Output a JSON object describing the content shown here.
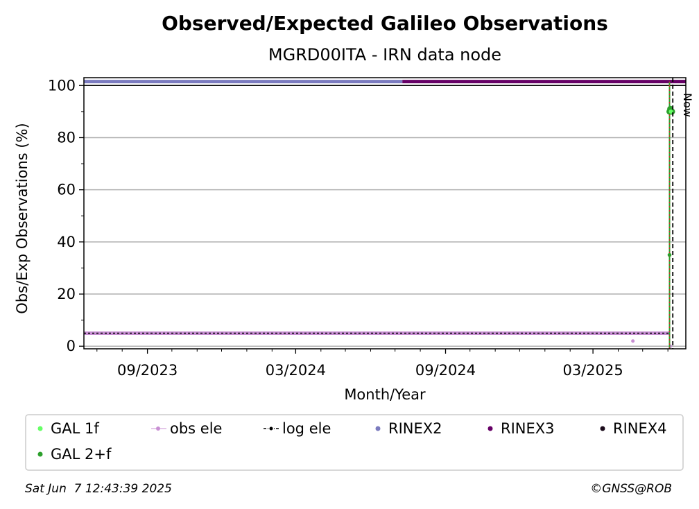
{
  "chart_data": {
    "type": "scatter",
    "title": "Observed/Expected Galileo Observations",
    "subtitle": "MGRD00ITA - IRN data node",
    "xlabel": "Month/Year",
    "ylabel": "Obs/Exp Observations (%)",
    "xlim": [
      "2023-06-15",
      "2025-06-23"
    ],
    "ylim": [
      -1,
      103
    ],
    "x_ticks": [
      {
        "date": "2023-09-01",
        "label": "09/2023"
      },
      {
        "date": "2024-03-01",
        "label": "03/2024"
      },
      {
        "date": "2024-09-01",
        "label": "09/2024"
      },
      {
        "date": "2025-03-01",
        "label": "03/2025"
      }
    ],
    "x_minor_ticks": [
      "2023-07-01",
      "2023-08-01",
      "2023-10-01",
      "2023-11-01",
      "2023-12-01",
      "2024-01-01",
      "2024-02-01",
      "2024-04-01",
      "2024-05-01",
      "2024-06-01",
      "2024-07-01",
      "2024-08-01",
      "2024-10-01",
      "2024-11-01",
      "2024-12-01",
      "2025-01-01",
      "2025-02-01",
      "2025-04-01",
      "2025-05-01",
      "2025-06-01"
    ],
    "y_ticks": [
      0,
      20,
      40,
      60,
      80,
      100
    ],
    "y_minor_ticks": [
      10,
      30,
      50,
      70,
      90
    ],
    "grid": "horizontal",
    "now_date": "2025-06-07",
    "now_label": "Now",
    "series": [
      {
        "name": "GAL 1f",
        "color": "#66ff66",
        "marker": "dot",
        "points": [
          {
            "x": "2025-06-03",
            "y": 90
          }
        ]
      },
      {
        "name": "obs ele",
        "color": "#c88fd3",
        "marker": "dot-line",
        "segment": {
          "start": "2023-06-15",
          "end": "2025-06-03",
          "y": 5
        },
        "points": [
          {
            "x": "2025-04-19",
            "y": 2
          },
          {
            "x": "2025-06-04",
            "y": 0
          }
        ]
      },
      {
        "name": "log ele",
        "color": "#000000",
        "marker": "dashdot-line",
        "segment": {
          "start": "2023-06-15",
          "end": "2025-06-03",
          "y": 5
        }
      },
      {
        "name": "RINEX2",
        "color": "#7b7bbf",
        "marker": "dot",
        "segment": {
          "start": "2023-06-15",
          "end": "2024-07-10",
          "y": 101.5
        }
      },
      {
        "name": "RINEX3",
        "color": "#660066",
        "marker": "dot",
        "segment": {
          "start": "2024-07-10",
          "end": "2025-06-23",
          "y": 101.5
        }
      },
      {
        "name": "RINEX4",
        "color": "#1a0a1a",
        "marker": "dot",
        "points": []
      },
      {
        "name": "GAL 2+f",
        "color": "#2ca02c",
        "marker": "dot",
        "points": [
          {
            "x": "2025-06-03",
            "y": 35
          },
          {
            "x": "2025-06-03",
            "y": 90
          },
          {
            "x": "2025-06-04",
            "y": 91
          },
          {
            "x": "2025-06-05",
            "y": 90
          },
          {
            "x": "2025-06-06",
            "y": 90
          }
        ]
      }
    ],
    "legend_position": "bottom"
  },
  "footer": {
    "timestamp": "Sat Jun  7 12:43:39 2025",
    "credit": "©GNSS@ROB"
  }
}
